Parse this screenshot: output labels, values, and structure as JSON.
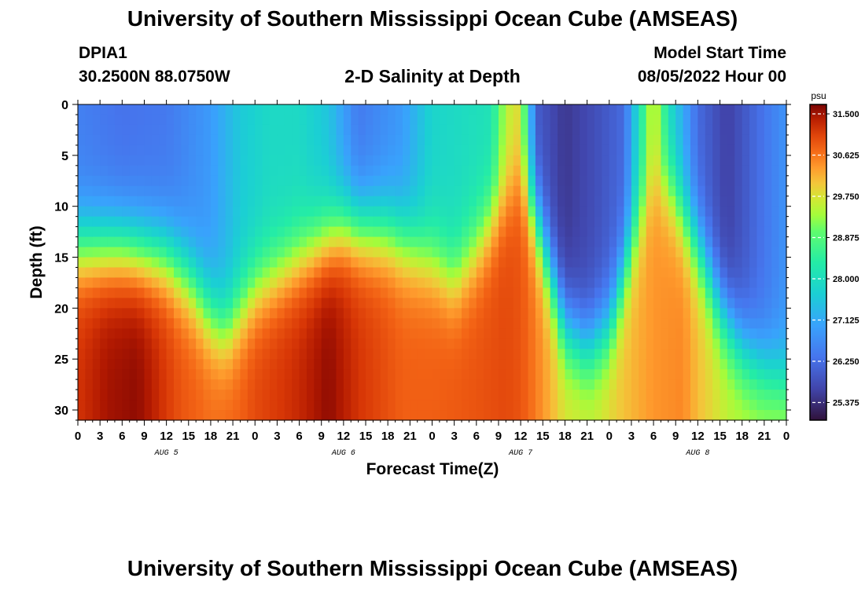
{
  "header": {
    "title_top": "University of Southern Mississippi Ocean Cube (AMSEAS)",
    "station_id": "DPIA1",
    "station_coords": "30.2500N  88.0750W",
    "chart_title": "2-D Salinity at Depth",
    "model_start_label": "Model Start Time",
    "model_start_value": "08/05/2022 Hour 00",
    "title_bottom": "University of Southern Mississippi Ocean Cube (AMSEAS)"
  },
  "chart_data": {
    "type": "heatmap",
    "title": "2-D Salinity at Depth",
    "xlabel": "Forecast Time(Z)",
    "ylabel": "Depth (ft)",
    "x_unit": "forecast hour",
    "xlim": [
      0,
      96
    ],
    "ylim": [
      0,
      31
    ],
    "y_inverted": true,
    "x_ticks": [
      0,
      3,
      6,
      9,
      12,
      15,
      18,
      21,
      24,
      27,
      30,
      33,
      36,
      39,
      42,
      45,
      48,
      51,
      54,
      57,
      60,
      63,
      66,
      69,
      72,
      75,
      78,
      81,
      84,
      87,
      90,
      93,
      96
    ],
    "x_tick_labels": [
      "0",
      "3",
      "6",
      "9",
      "12",
      "15",
      "18",
      "21",
      "0",
      "3",
      "6",
      "9",
      "12",
      "15",
      "18",
      "21",
      "0",
      "3",
      "6",
      "9",
      "12",
      "15",
      "18",
      "21",
      "0",
      "3",
      "6",
      "9",
      "12",
      "15",
      "18",
      "21",
      "0"
    ],
    "day_labels": [
      {
        "label": "AUG 5",
        "hour": 12
      },
      {
        "label": "AUG 6",
        "hour": 36
      },
      {
        "label": "AUG 7",
        "hour": 60
      },
      {
        "label": "AUG 8",
        "hour": 84
      }
    ],
    "y_ticks": [
      0,
      5,
      10,
      15,
      20,
      25,
      30
    ],
    "y_tick_labels": [
      "0",
      "5",
      "10",
      "15",
      "20",
      "25",
      "30"
    ],
    "colorbar": {
      "unit": "psu",
      "range": [
        25.0,
        31.7
      ],
      "ticks": [
        31.5,
        30.625,
        29.75,
        28.875,
        28.0,
        27.125,
        26.25,
        25.375
      ],
      "tick_labels": [
        "31.500",
        "30.625",
        "29.750",
        "28.875",
        "28.000",
        "27.125",
        "26.250",
        "25.375"
      ]
    },
    "interface_depth_ft": {
      "hours": [
        0,
        6,
        9,
        12,
        15,
        18,
        20,
        22,
        24,
        30,
        36,
        42,
        48,
        51,
        54,
        57,
        60,
        62,
        66,
        69,
        72,
        75,
        78,
        80,
        84,
        87,
        90,
        93,
        96
      ],
      "depths": [
        14,
        14,
        14.5,
        15,
        17,
        20.5,
        22,
        20,
        18,
        15,
        12,
        12.5,
        15,
        17,
        14,
        10,
        7,
        11,
        22,
        24,
        22,
        14,
        7.5,
        8,
        14,
        20,
        24,
        26,
        27
      ]
    },
    "surface_salinity_psu": {
      "hours": [
        0,
        6,
        12,
        18,
        22,
        26,
        30,
        34,
        38,
        44,
        48,
        56,
        58,
        60,
        62,
        66,
        70,
        74,
        76,
        78,
        80,
        84,
        88,
        92,
        96
      ],
      "values": [
        26.5,
        26.3,
        26.4,
        26.9,
        27.6,
        27.9,
        27.9,
        27.5,
        26.4,
        26.9,
        27.8,
        28.1,
        29.5,
        29.8,
        26.0,
        25.5,
        25.8,
        26.2,
        28.0,
        29.8,
        28.0,
        26.2,
        25.6,
        26.2,
        26.8
      ]
    },
    "bottom_salinity_psu": {
      "hours": [
        0,
        4,
        8,
        10,
        14,
        18,
        22,
        24,
        30,
        34,
        38,
        44,
        48,
        54,
        58,
        60,
        62,
        66,
        70,
        72,
        78,
        82,
        84,
        88,
        92,
        96
      ],
      "values": [
        31.2,
        31.5,
        31.6,
        31.4,
        30.9,
        30.7,
        30.8,
        31.0,
        31.3,
        31.6,
        31.2,
        30.8,
        30.8,
        30.9,
        31.0,
        30.9,
        30.6,
        29.8,
        29.7,
        29.9,
        30.4,
        30.5,
        30.1,
        29.6,
        29.5,
        29.6
      ]
    }
  }
}
